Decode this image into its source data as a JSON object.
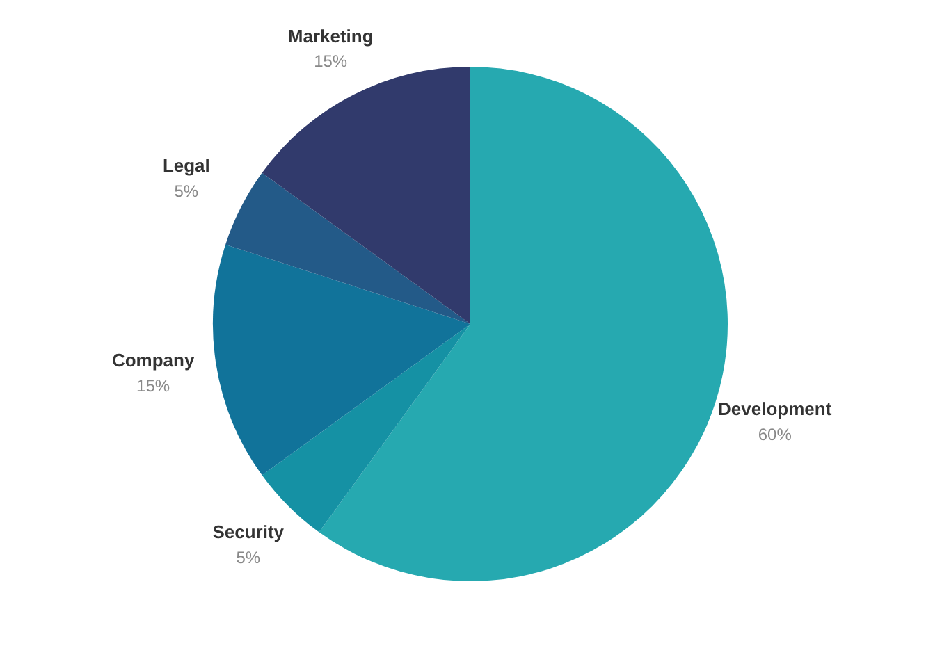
{
  "chart_data": {
    "type": "pie",
    "categories": [
      "Development",
      "Security",
      "Company",
      "Legal",
      "Marketing"
    ],
    "values": [
      60,
      5,
      15,
      5,
      15
    ],
    "value_labels": [
      "60%",
      "5%",
      "15%",
      "5%",
      "15%"
    ],
    "colors": [
      "#26a9b0",
      "#1591a4",
      "#11739a",
      "#235a88",
      "#313a6c"
    ],
    "legend": false
  }
}
